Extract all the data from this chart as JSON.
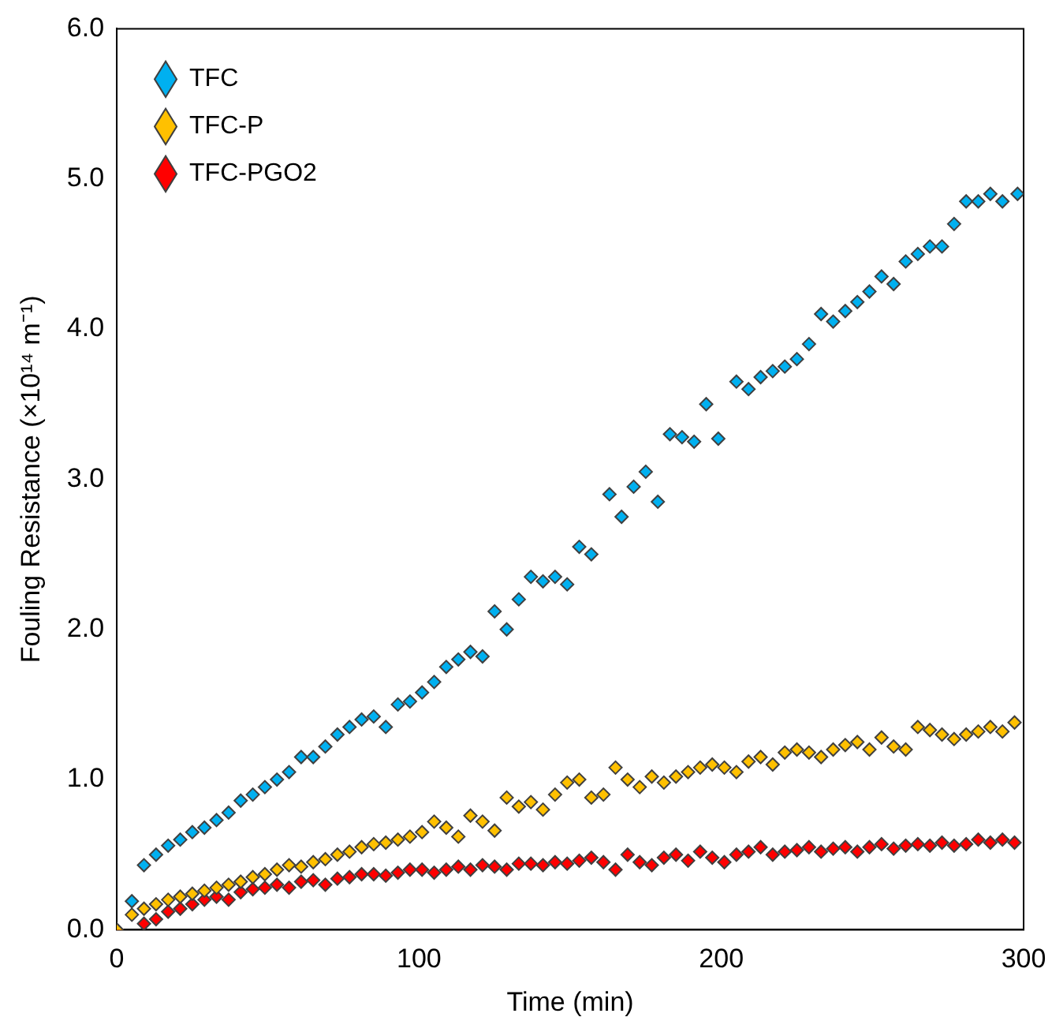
{
  "chart_data": {
    "type": "scatter",
    "xlabel": "Time (min)",
    "ylabel": "Fouling Resistance (×10¹⁴ m⁻¹)",
    "xlim": [
      0,
      300
    ],
    "xticks": [
      0,
      100,
      200,
      300
    ],
    "ylim": [
      0,
      6
    ],
    "yticks": [
      {
        "value": 0,
        "label": "0.0"
      },
      {
        "value": 1,
        "label": "1.0"
      },
      {
        "value": 2,
        "label": "2.0"
      },
      {
        "value": 3,
        "label": "3.0"
      },
      {
        "value": 4,
        "label": "4.0"
      },
      {
        "value": 5,
        "label": "5.0"
      },
      {
        "value": 6,
        "label": "6.0"
      }
    ],
    "marker": "diamond",
    "legend": "top left",
    "grid": false,
    "series": [
      {
        "name": "TFC",
        "color": "#00b0f0",
        "x": [
          5,
          9,
          13,
          17,
          21,
          25,
          29,
          33,
          37,
          41,
          45,
          49,
          53,
          57,
          61,
          65,
          69,
          73,
          77,
          81,
          85,
          89,
          93,
          97,
          101,
          105,
          109,
          113,
          117,
          121,
          125,
          129,
          133,
          137,
          141,
          145,
          149,
          153,
          157,
          163,
          167,
          171,
          175,
          179,
          183,
          187,
          191,
          195,
          199,
          205,
          209,
          213,
          217,
          221,
          225,
          229,
          233,
          237,
          241,
          245,
          249,
          253,
          257,
          261,
          265,
          269,
          273,
          277,
          281,
          285,
          289,
          293,
          298
        ],
        "values": [
          0.19,
          0.43,
          0.5,
          0.56,
          0.6,
          0.65,
          0.68,
          0.73,
          0.78,
          0.86,
          0.9,
          0.95,
          1.0,
          1.05,
          1.15,
          1.15,
          1.22,
          1.3,
          1.35,
          1.4,
          1.42,
          1.35,
          1.5,
          1.52,
          1.58,
          1.65,
          1.75,
          1.8,
          1.85,
          1.82,
          2.12,
          2.0,
          2.2,
          2.35,
          2.32,
          2.35,
          2.3,
          2.55,
          2.5,
          2.9,
          2.75,
          2.95,
          3.05,
          2.85,
          3.3,
          3.28,
          3.25,
          3.5,
          3.27,
          3.65,
          3.6,
          3.68,
          3.72,
          3.75,
          3.8,
          3.9,
          4.1,
          4.05,
          4.12,
          4.18,
          4.25,
          4.35,
          4.3,
          4.45,
          4.5,
          4.55,
          4.55,
          4.7,
          4.85,
          4.85,
          4.9,
          4.85,
          4.9
        ]
      },
      {
        "name": "TFC-P",
        "color": "#ffc000",
        "x": [
          0,
          5,
          9,
          13,
          17,
          21,
          25,
          29,
          33,
          37,
          41,
          45,
          49,
          53,
          57,
          61,
          65,
          69,
          73,
          77,
          81,
          85,
          89,
          93,
          97,
          101,
          105,
          109,
          113,
          117,
          121,
          125,
          129,
          133,
          137,
          141,
          145,
          149,
          153,
          157,
          161,
          165,
          169,
          173,
          177,
          181,
          185,
          189,
          193,
          197,
          201,
          205,
          209,
          213,
          217,
          221,
          225,
          229,
          233,
          237,
          241,
          245,
          249,
          253,
          257,
          261,
          265,
          269,
          273,
          277,
          281,
          285,
          289,
          293,
          297
        ],
        "values": [
          0,
          0.1,
          0.14,
          0.17,
          0.2,
          0.22,
          0.24,
          0.26,
          0.28,
          0.3,
          0.32,
          0.35,
          0.37,
          0.4,
          0.43,
          0.42,
          0.45,
          0.47,
          0.5,
          0.52,
          0.55,
          0.57,
          0.58,
          0.6,
          0.62,
          0.65,
          0.72,
          0.68,
          0.62,
          0.76,
          0.72,
          0.66,
          0.88,
          0.82,
          0.85,
          0.8,
          0.9,
          0.98,
          1.0,
          0.88,
          0.9,
          1.08,
          1.0,
          0.95,
          1.02,
          0.98,
          1.02,
          1.05,
          1.08,
          1.1,
          1.08,
          1.05,
          1.12,
          1.15,
          1.1,
          1.18,
          1.2,
          1.18,
          1.15,
          1.2,
          1.23,
          1.25,
          1.2,
          1.28,
          1.22,
          1.2,
          1.35,
          1.33,
          1.3,
          1.27,
          1.3,
          1.32,
          1.35,
          1.32,
          1.38
        ]
      },
      {
        "name": "TFC-PGO2",
        "color": "#ff0000",
        "x": [
          0,
          9,
          13,
          17,
          21,
          25,
          29,
          33,
          37,
          41,
          45,
          49,
          53,
          57,
          61,
          65,
          69,
          73,
          77,
          81,
          85,
          89,
          93,
          97,
          101,
          105,
          109,
          113,
          117,
          121,
          125,
          129,
          133,
          137,
          141,
          145,
          149,
          153,
          157,
          161,
          165,
          169,
          173,
          177,
          181,
          185,
          189,
          193,
          197,
          201,
          205,
          209,
          213,
          217,
          221,
          225,
          229,
          233,
          237,
          241,
          245,
          249,
          253,
          257,
          261,
          265,
          269,
          273,
          277,
          281,
          285,
          289,
          293,
          297
        ],
        "values": [
          0,
          0.04,
          0.07,
          0.12,
          0.14,
          0.17,
          0.2,
          0.22,
          0.2,
          0.25,
          0.27,
          0.28,
          0.3,
          0.28,
          0.32,
          0.33,
          0.3,
          0.34,
          0.35,
          0.37,
          0.37,
          0.36,
          0.38,
          0.4,
          0.4,
          0.38,
          0.4,
          0.42,
          0.4,
          0.43,
          0.42,
          0.4,
          0.44,
          0.44,
          0.43,
          0.45,
          0.44,
          0.46,
          0.48,
          0.45,
          0.4,
          0.5,
          0.45,
          0.43,
          0.48,
          0.5,
          0.46,
          0.52,
          0.48,
          0.45,
          0.5,
          0.52,
          0.55,
          0.5,
          0.52,
          0.53,
          0.55,
          0.52,
          0.54,
          0.55,
          0.52,
          0.55,
          0.57,
          0.54,
          0.56,
          0.57,
          0.56,
          0.58,
          0.56,
          0.57,
          0.6,
          0.58,
          0.6,
          0.58
        ]
      }
    ]
  }
}
